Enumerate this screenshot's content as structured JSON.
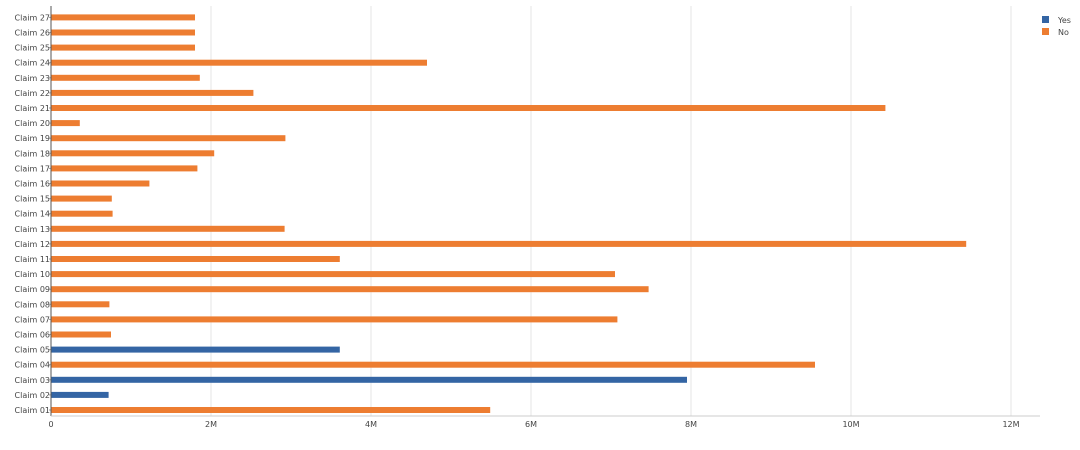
{
  "chart_data": {
    "type": "bar",
    "orientation": "horizontal",
    "grid": true,
    "legend_position": "top-right",
    "xlim": [
      0,
      12500000
    ],
    "x_ticks": [
      {
        "value": 0,
        "label": "0"
      },
      {
        "value": 2000000,
        "label": "2M"
      },
      {
        "value": 4000000,
        "label": "4M"
      },
      {
        "value": 6000000,
        "label": "6M"
      },
      {
        "value": 8000000,
        "label": "8M"
      },
      {
        "value": 10000000,
        "label": "10M"
      },
      {
        "value": 12000000,
        "label": "12M"
      }
    ],
    "categories": [
      "Claim 01",
      "Claim 02",
      "Claim 03",
      "Claim 04",
      "Claim 05",
      "Claim 06",
      "Claim 07",
      "Claim 08",
      "Claim 09",
      "Claim 10",
      "Claim 11",
      "Claim 12",
      "Claim 13",
      "Claim 14",
      "Claim 15",
      "Claim 16",
      "Claim 17",
      "Claim 18",
      "Claim 19",
      "Claim 20",
      "Claim 21",
      "Claim 22",
      "Claim 23",
      "Claim 24",
      "Claim 25",
      "Claim 26",
      "Claim 27"
    ],
    "series": [
      {
        "name": "Yes",
        "color": "#3465a4",
        "values": [
          null,
          720000,
          7950000,
          null,
          3610000,
          null,
          null,
          null,
          null,
          null,
          null,
          null,
          null,
          null,
          null,
          null,
          null,
          null,
          null,
          null,
          null,
          null,
          null,
          null,
          null,
          null,
          null
        ]
      },
      {
        "name": "No",
        "color": "#ed7d31",
        "values": [
          5490000,
          null,
          null,
          9550000,
          null,
          750000,
          7080000,
          730000,
          7470000,
          7050000,
          3610000,
          11440000,
          2920000,
          770000,
          760000,
          1230000,
          1830000,
          2040000,
          2930000,
          360000,
          10430000,
          2530000,
          1860000,
          4700000,
          1800000,
          1800000,
          1800000
        ]
      }
    ]
  }
}
